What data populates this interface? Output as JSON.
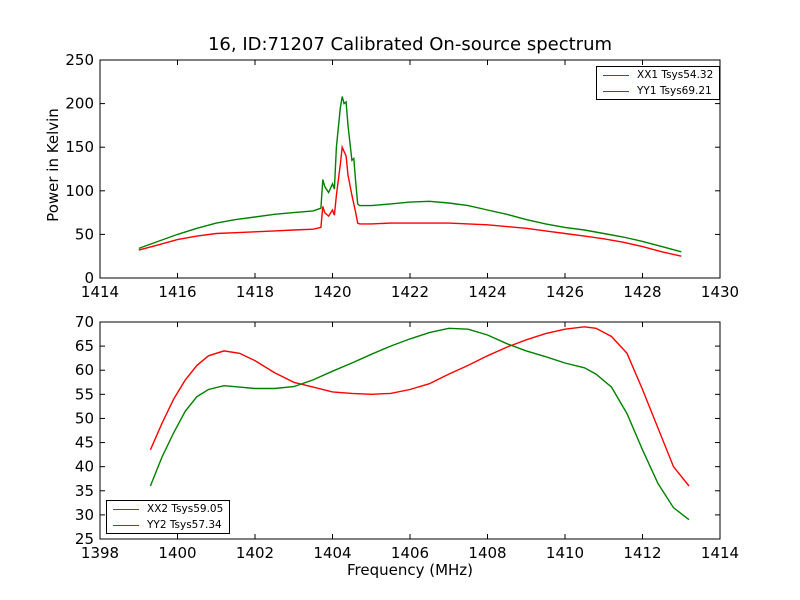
{
  "title": "16, ID:71207 Calibrated On-source spectrum",
  "ylabel": "Power in Kelvin",
  "xlabel": "Frequency (MHz)",
  "colors": {
    "red": "#ff0000",
    "green": "#008000"
  },
  "chart_data": [
    {
      "type": "line",
      "xlim": [
        1414,
        1430
      ],
      "ylim": [
        0,
        250
      ],
      "xticks": [
        1414,
        1416,
        1418,
        1420,
        1422,
        1424,
        1426,
        1428,
        1430
      ],
      "yticks": [
        0,
        50,
        100,
        150,
        200,
        250
      ],
      "legend_position": "top-right",
      "series": [
        {
          "name": "XX1 Tsys54.32",
          "color": "#ff0000",
          "x": [
            1415.0,
            1415.5,
            1416.0,
            1416.5,
            1417.0,
            1417.5,
            1418.0,
            1418.5,
            1419.0,
            1419.5,
            1419.7,
            1419.75,
            1419.8,
            1419.9,
            1420.0,
            1420.05,
            1420.1,
            1420.2,
            1420.25,
            1420.3,
            1420.35,
            1420.4,
            1420.5,
            1420.55,
            1420.6,
            1420.65,
            1420.7,
            1421.0,
            1421.5,
            1422.0,
            1422.5,
            1423.0,
            1423.5,
            1424.0,
            1424.5,
            1425.0,
            1425.5,
            1426.0,
            1426.5,
            1427.0,
            1427.5,
            1428.0,
            1428.5,
            1429.0
          ],
          "y": [
            32,
            38,
            44,
            48,
            51,
            52,
            53,
            54,
            55,
            56,
            58,
            82,
            75,
            71,
            78,
            72,
            95,
            130,
            150,
            145,
            140,
            118,
            95,
            85,
            75,
            63,
            62,
            62,
            63,
            63,
            63,
            63,
            62,
            61,
            59,
            57,
            54,
            51,
            48,
            45,
            41,
            36,
            30,
            25
          ]
        },
        {
          "name": "YY1 Tsys69.21",
          "color": "#008000",
          "x": [
            1415.0,
            1415.5,
            1416.0,
            1416.5,
            1417.0,
            1417.5,
            1418.0,
            1418.5,
            1419.0,
            1419.5,
            1419.7,
            1419.75,
            1419.8,
            1419.9,
            1420.0,
            1420.05,
            1420.1,
            1420.2,
            1420.25,
            1420.3,
            1420.35,
            1420.4,
            1420.5,
            1420.55,
            1420.6,
            1420.65,
            1420.7,
            1421.0,
            1421.5,
            1422.0,
            1422.5,
            1423.0,
            1423.5,
            1424.0,
            1424.5,
            1425.0,
            1425.5,
            1426.0,
            1426.5,
            1427.0,
            1427.5,
            1428.0,
            1428.5,
            1429.0
          ],
          "y": [
            34,
            42,
            50,
            57,
            63,
            67,
            70,
            73,
            75,
            77,
            80,
            113,
            105,
            98,
            108,
            102,
            150,
            195,
            208,
            200,
            202,
            175,
            135,
            137,
            110,
            85,
            83,
            83,
            85,
            87,
            88,
            86,
            83,
            78,
            73,
            67,
            62,
            58,
            55,
            51,
            47,
            42,
            36,
            30
          ]
        }
      ]
    },
    {
      "type": "line",
      "xlim": [
        1398,
        1414
      ],
      "ylim": [
        25,
        70
      ],
      "xticks": [
        1398,
        1400,
        1402,
        1404,
        1406,
        1408,
        1410,
        1412,
        1414
      ],
      "yticks": [
        25,
        30,
        35,
        40,
        45,
        50,
        55,
        60,
        65,
        70
      ],
      "legend_position": "bottom-left",
      "series": [
        {
          "name": "XX2 Tsys59.05",
          "color": "#ff0000",
          "x": [
            1399.3,
            1399.6,
            1399.9,
            1400.2,
            1400.5,
            1400.8,
            1401.2,
            1401.6,
            1402.0,
            1402.5,
            1403.0,
            1403.5,
            1404.0,
            1404.5,
            1405.0,
            1405.5,
            1406.0,
            1406.5,
            1407.0,
            1407.5,
            1408.0,
            1408.5,
            1409.0,
            1409.5,
            1410.0,
            1410.5,
            1410.8,
            1411.2,
            1411.6,
            1412.0,
            1412.4,
            1412.8,
            1413.2
          ],
          "y": [
            43.5,
            49,
            54,
            58,
            61,
            63,
            64,
            63.5,
            62,
            59.5,
            57.5,
            56.5,
            55.5,
            55.2,
            55.0,
            55.2,
            56.0,
            57.2,
            59.2,
            61,
            63,
            64.8,
            66.3,
            67.6,
            68.5,
            69.0,
            68.7,
            67,
            63.5,
            56,
            48,
            40,
            36
          ]
        },
        {
          "name": "YY2 Tsys57.34",
          "color": "#008000",
          "x": [
            1399.3,
            1399.6,
            1399.9,
            1400.2,
            1400.5,
            1400.8,
            1401.2,
            1401.6,
            1402.0,
            1402.5,
            1403.0,
            1403.5,
            1404.0,
            1404.5,
            1405.0,
            1405.5,
            1406.0,
            1406.5,
            1407.0,
            1407.5,
            1408.0,
            1408.5,
            1409.0,
            1409.5,
            1410.0,
            1410.5,
            1410.8,
            1411.2,
            1411.6,
            1412.0,
            1412.4,
            1412.8,
            1413.2
          ],
          "y": [
            36,
            42,
            47,
            51.5,
            54.5,
            56,
            56.8,
            56.5,
            56.2,
            56.2,
            56.6,
            58,
            59.8,
            61.5,
            63.3,
            65,
            66.5,
            67.8,
            68.7,
            68.5,
            67.3,
            65.5,
            64,
            62.8,
            61.5,
            60.5,
            59.2,
            56.5,
            51,
            43.5,
            36.5,
            31.5,
            29
          ]
        }
      ]
    }
  ]
}
